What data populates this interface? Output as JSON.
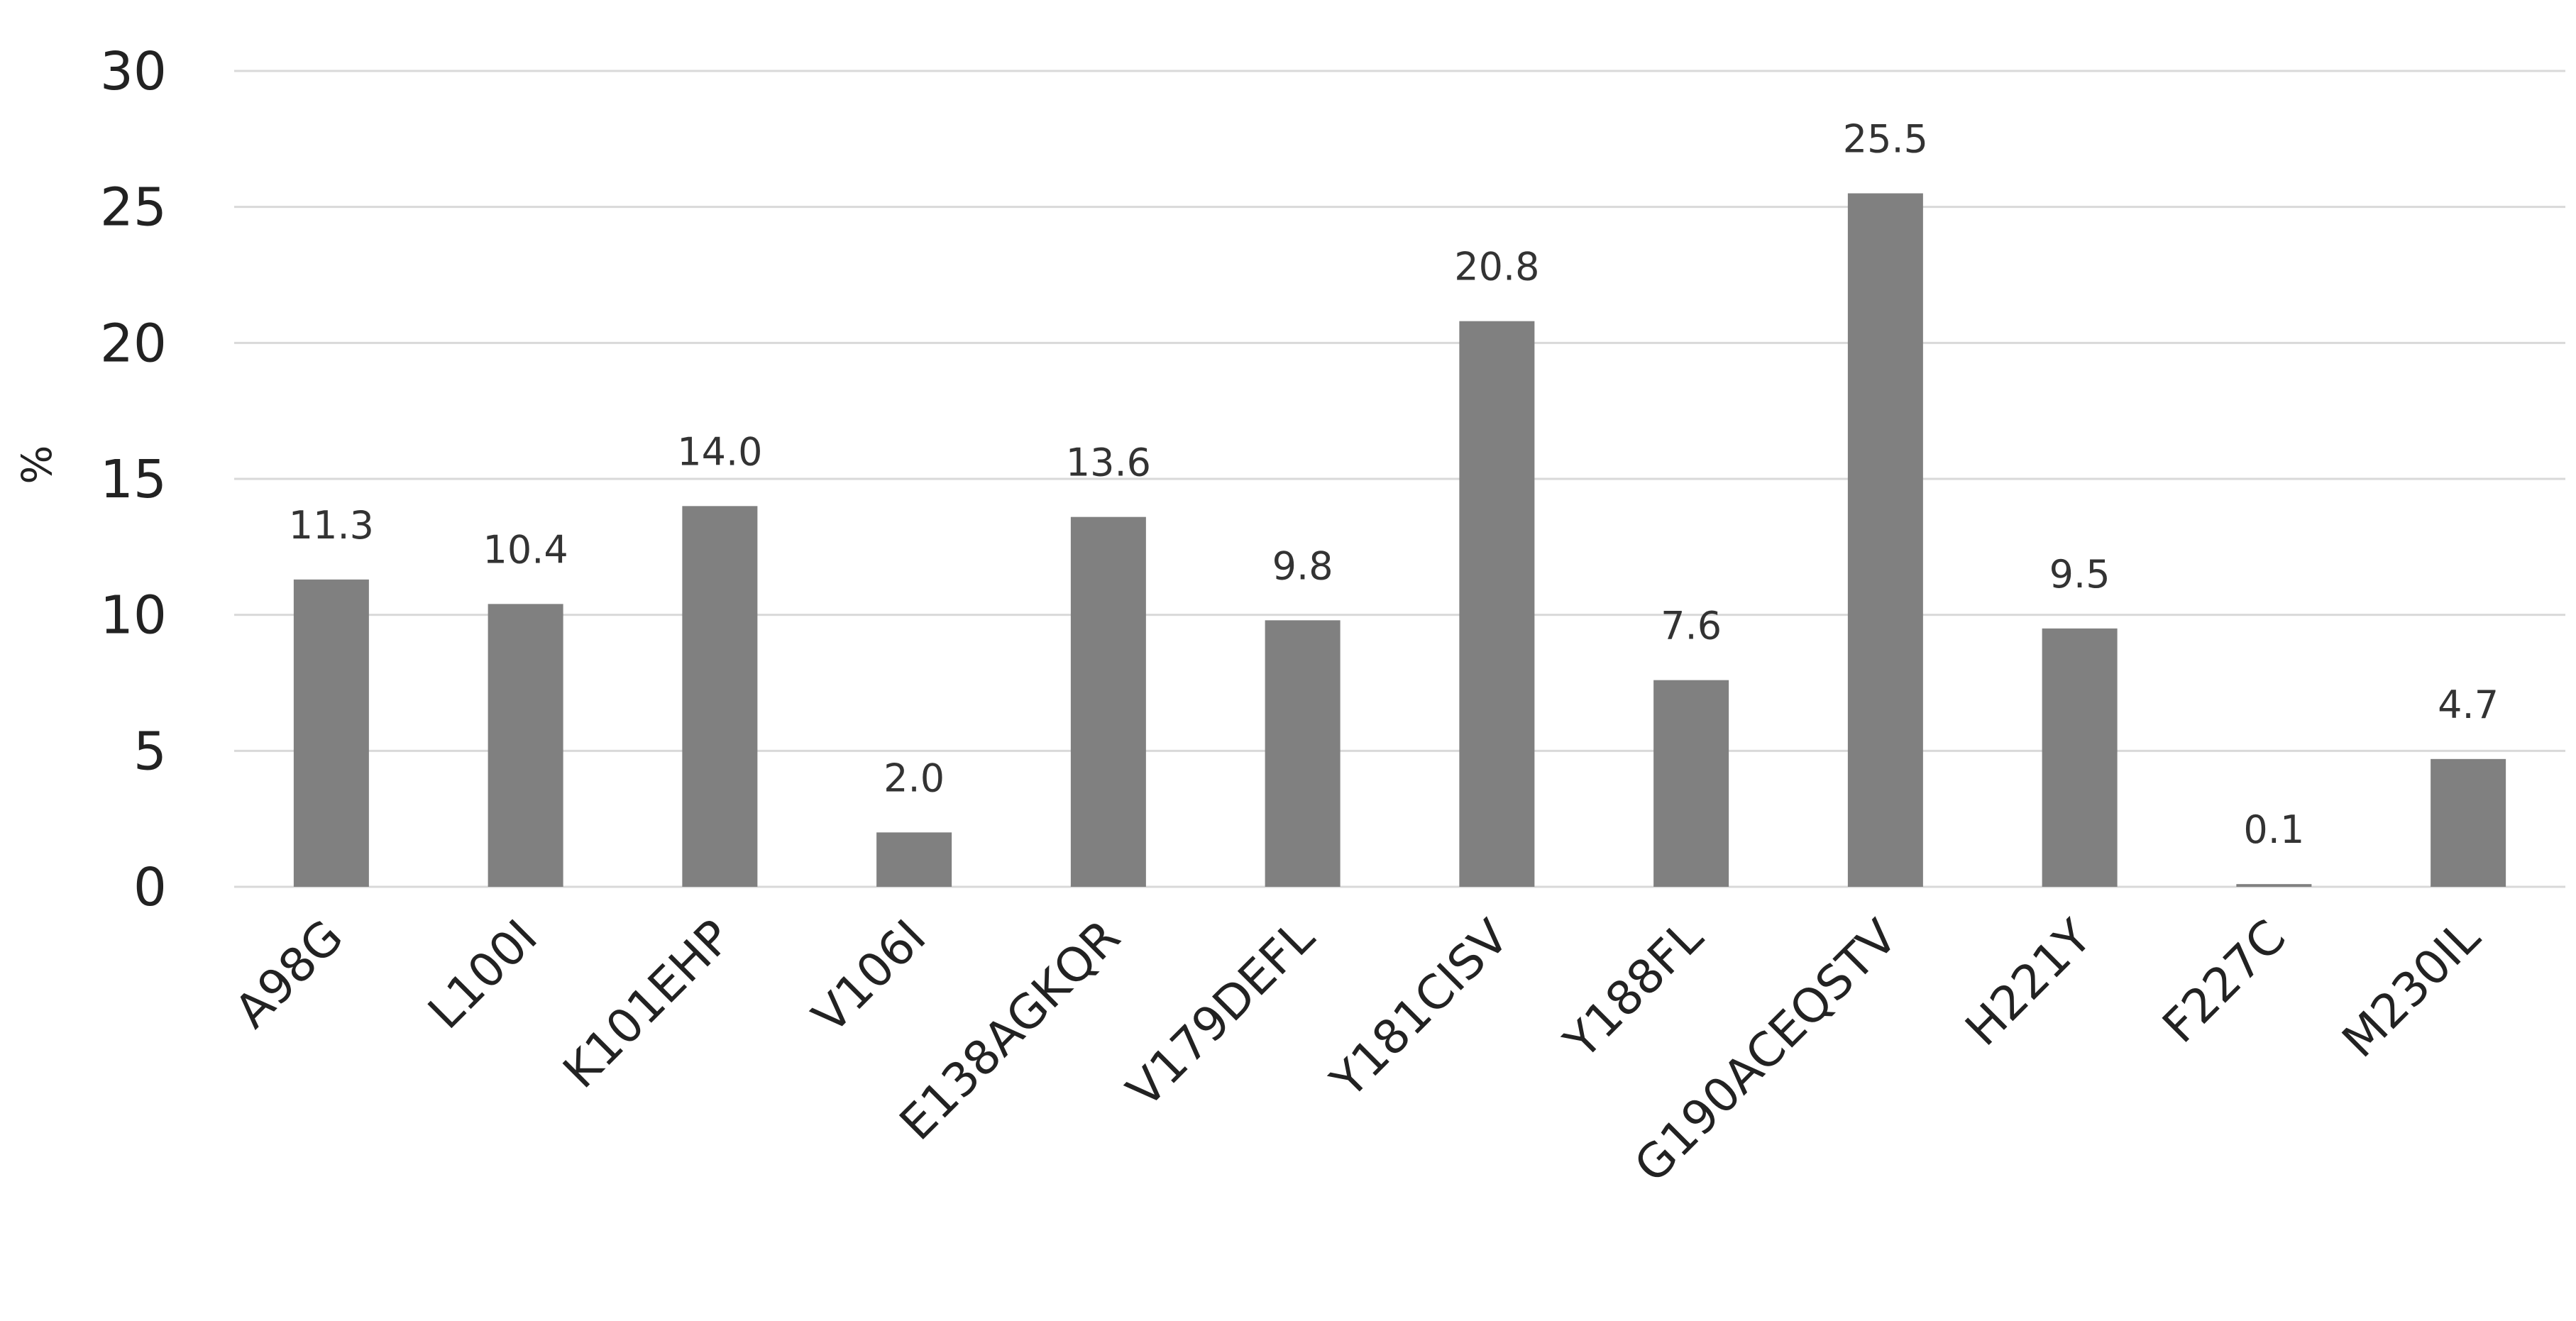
{
  "chart_data": {
    "type": "bar",
    "title": "",
    "xlabel": "",
    "ylabel": "%",
    "ylim": [
      0,
      30
    ],
    "yticks": [
      0,
      5,
      10,
      15,
      20,
      25,
      30
    ],
    "grid": true,
    "legend": "none",
    "categories": [
      "A98G",
      "L100I",
      "K101EHP",
      "V106I",
      "E138AGKQR",
      "V179DEFL",
      "Y181CISV",
      "Y188FL",
      "G190ACEQSTV",
      "H221Y",
      "F227C",
      "M230IL"
    ],
    "values": [
      11.3,
      10.4,
      14.0,
      2.0,
      13.6,
      9.8,
      20.8,
      7.6,
      25.5,
      9.5,
      0.1,
      4.7
    ],
    "data_labels": [
      "11.3",
      "10.4",
      "14.0",
      "2.0",
      "13.6",
      "9.8",
      "20.8",
      "7.6",
      "25.5",
      "9.5",
      "0.1",
      "4.7"
    ],
    "colors": {
      "bar": "#808080",
      "grid": "#d9d9d9",
      "text": "#222222"
    }
  }
}
